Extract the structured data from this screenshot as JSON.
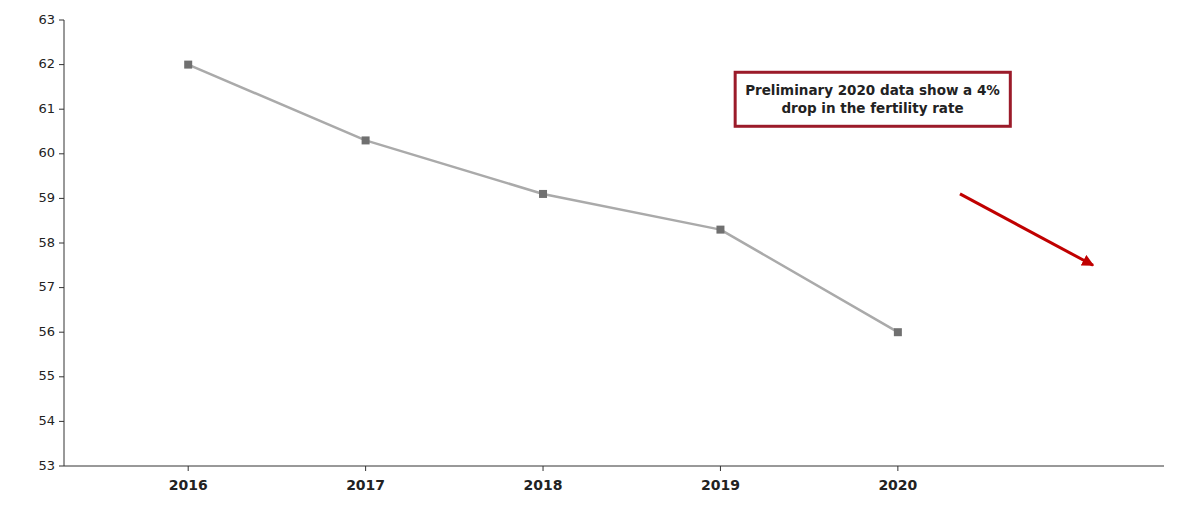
{
  "chart_data": {
    "type": "line",
    "x": [
      2016,
      2017,
      2018,
      2019,
      2020
    ],
    "values": [
      62.0,
      60.3,
      59.1,
      58.3,
      56.0
    ],
    "color": "#aaaaaa",
    "colors": [
      "#707070",
      "#707070",
      "#707070",
      "#707070",
      "#707070"
    ],
    "marker": "square",
    "xlim": [
      2015.3,
      2021.5
    ],
    "xticks": [
      2016,
      2017,
      2018,
      2019,
      2020
    ],
    "ylim": [
      53,
      63
    ],
    "yticks": [
      53,
      54,
      55,
      56,
      57,
      58,
      59,
      60,
      61,
      62,
      63
    ],
    "grid": false,
    "annotation": {
      "text": "Preliminary 2020 data show a 4%\ndrop in the fertility rate",
      "color": "#9b1b2a",
      "arrow": {
        "x_start": 2020.35,
        "y_start": 59.1,
        "x_end": 2021.1,
        "y_end": 57.5,
        "color": "#c00000"
      }
    }
  }
}
